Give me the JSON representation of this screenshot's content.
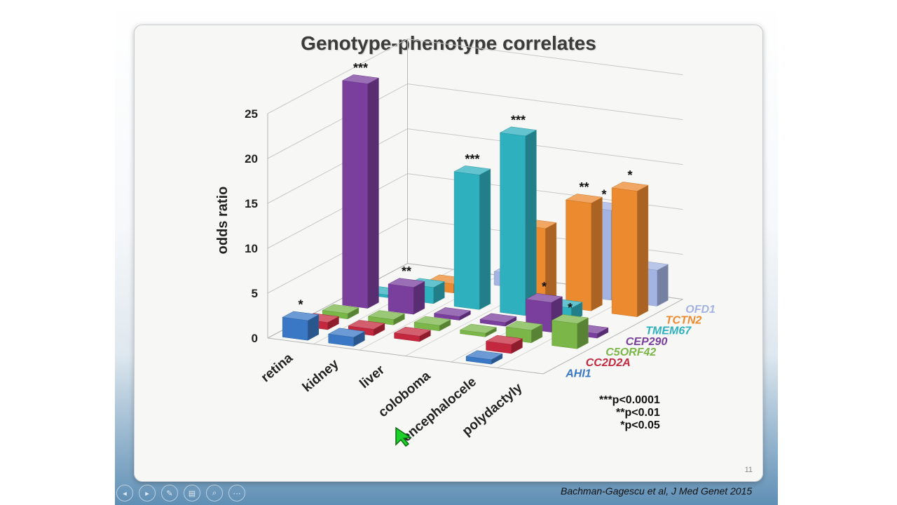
{
  "slide": {
    "title": "Genotype-phenotype correlates",
    "slide_number": "11",
    "citation": "Bachman-Gagescu et al, J Med Genet 2015"
  },
  "legend_note": [
    "***p<0.0001",
    "**p<0.01",
    "*p<0.05"
  ],
  "toolbar": [
    {
      "name": "previous-slide-icon",
      "glyph": "◂"
    },
    {
      "name": "next-slide-icon",
      "glyph": "▸"
    },
    {
      "name": "pen-icon",
      "glyph": "✎"
    },
    {
      "name": "slides-grid-icon",
      "glyph": "▤"
    },
    {
      "name": "zoom-icon",
      "glyph": "⌕"
    },
    {
      "name": "more-options-icon",
      "glyph": "⋯"
    }
  ],
  "chart_data": {
    "type": "bar",
    "style": "3d",
    "categories": [
      "retina",
      "kidney",
      "liver",
      "coloboma",
      "encephalocele",
      "polydactyly"
    ],
    "ylabel": "odds ratio",
    "ylim": [
      0,
      25
    ],
    "yticks": [
      0,
      5,
      10,
      15,
      20,
      25
    ],
    "grid": true,
    "series": [
      {
        "name": "AHI1",
        "color": "#3a78c5",
        "values": [
          2.2,
          1.0,
          0,
          0,
          0.5,
          0
        ],
        "significance": [
          "*",
          "",
          "",
          "",
          "",
          ""
        ]
      },
      {
        "name": "CC2D2A",
        "color": "#c4283e",
        "values": [
          0.8,
          0.7,
          0.6,
          0,
          1.0,
          0
        ],
        "significance": [
          "",
          "",
          "",
          "",
          "",
          ""
        ]
      },
      {
        "name": "C5ORF42",
        "color": "#7ab648",
        "values": [
          0.6,
          0.6,
          0.6,
          0.4,
          1.4,
          2.8
        ],
        "significance": [
          "",
          "",
          "",
          "",
          "",
          "*"
        ]
      },
      {
        "name": "CEP290",
        "color": "#7a3f9d",
        "values": [
          25,
          3.0,
          0.4,
          0.4,
          3.3,
          0.5
        ],
        "significance": [
          "***",
          "**",
          "",
          "",
          "*",
          ""
        ]
      },
      {
        "name": "TMEM67",
        "color": "#2fb0bf",
        "values": [
          0.3,
          1.8,
          15,
          20,
          1.5,
          0
        ],
        "significance": [
          "",
          "",
          "***",
          "***",
          "",
          ""
        ]
      },
      {
        "name": "TCTN2",
        "color": "#ec8a2f",
        "values": [
          0,
          1.0,
          0,
          8.5,
          12,
          14
        ],
        "significance": [
          "",
          "",
          "",
          "",
          "**",
          "*"
        ]
      },
      {
        "name": "OFD1",
        "color": "#a3b3e2",
        "values": [
          0,
          0,
          1.5,
          0,
          10,
          4
        ],
        "significance": [
          "",
          "",
          "",
          "",
          "*",
          ""
        ]
      }
    ]
  }
}
